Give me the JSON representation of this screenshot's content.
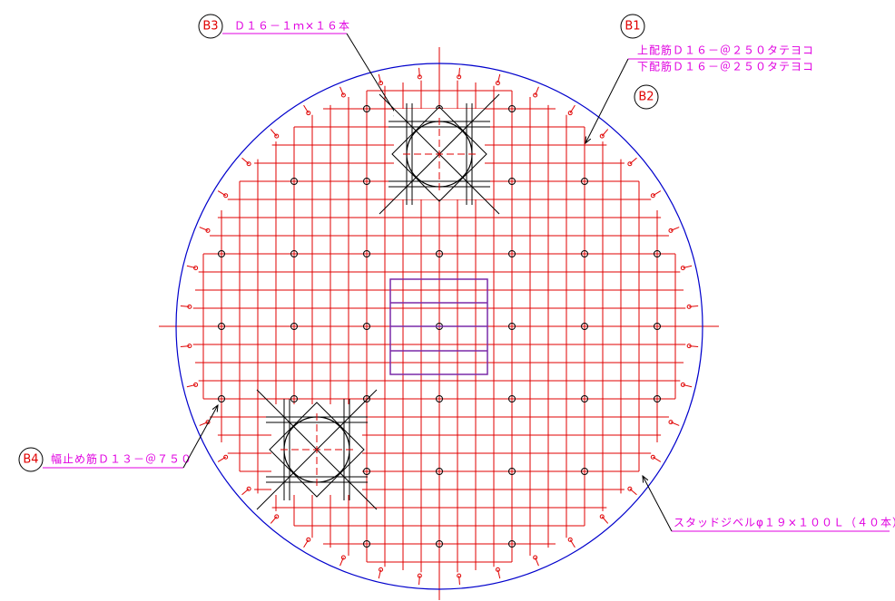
{
  "labels": [
    {
      "tag": "B3",
      "text": "Ｄ１６－１ｍ×１６本"
    },
    {
      "tag": "B1",
      "text": "上配筋Ｄ１６－＠２５０タテヨコ",
      "text2": "下配筋Ｄ１６－＠２５０タテヨコ"
    },
    {
      "tag": "B2"
    },
    {
      "tag": "B4",
      "text": "幅止め筋Ｄ１３－＠７５０"
    },
    {
      "text": "スタッドジベルφ１９×１００Ｌ（４０本）"
    }
  ]
}
